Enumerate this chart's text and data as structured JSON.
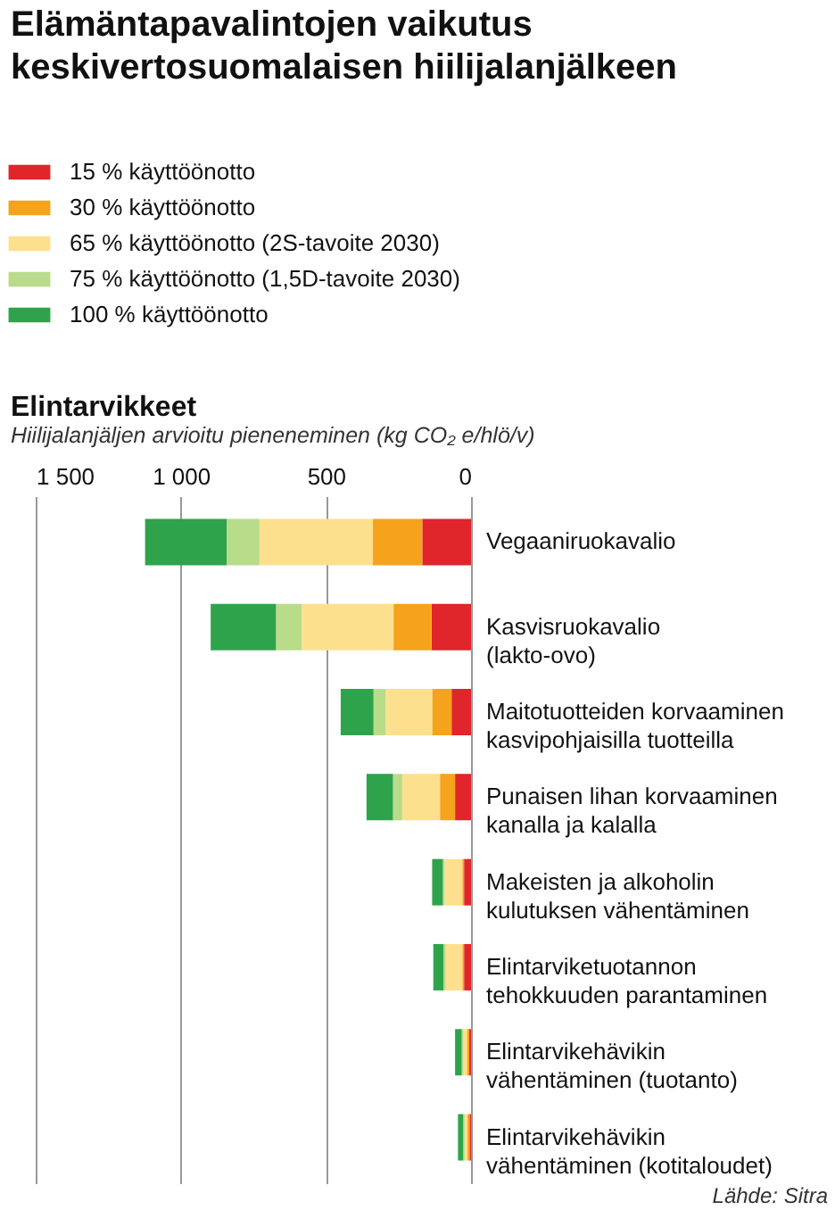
{
  "chart_data": {
    "type": "bar",
    "orientation": "horizontal",
    "stacked": true,
    "title": "Elämäntapavalintojen vaikutus keskivertosuomalaisen hiilijalanjälkeen",
    "subtitle": "Elintarvikkeet",
    "xlabel": "Hiilijalanjäljen arvioitu pieneneminen (kg CO₂ e/hlö/v)",
    "categories": [
      "Vegaaniruokavalio",
      "Kasvisruokavalio\n(lakto-ovo)",
      "Maitotuotteiden korvaaminen\nkasvipohjaisilla tuotteilla",
      "Punaisen lihan korvaaminen\nkanalla ja kalalla",
      "Makeisten ja alkoholin\nkulutuksen vähentäminen",
      "Elintarviketuotannon\ntehokkuuden parantaminen",
      "Elintarvikehävikin\nvähentäminen (tuotanto)",
      "Elintarvikehävikin\nvähentäminen (kotitaloudet)"
    ],
    "series": [
      {
        "name": "15 % käyttöönotto",
        "color": "#e0252b",
        "values": [
          168,
          136,
          67,
          55,
          24,
          24,
          6,
          5
        ]
      },
      {
        "name": "30 % käyttöönotto",
        "color": "#f5a31d",
        "values": [
          170,
          131,
          67,
          52,
          6,
          6,
          8,
          7
        ]
      },
      {
        "name": "65 % käyttöönotto (2S-tavoite 2030)",
        "color": "#fde08e",
        "values": [
          391,
          316,
          160,
          130,
          61,
          57,
          12,
          10
        ]
      },
      {
        "name": "75 % käyttöönotto (1,5D-tavoite 2030)",
        "color": "#b9dc8a",
        "values": [
          113,
          89,
          42,
          32,
          6,
          8,
          6,
          5
        ]
      },
      {
        "name": "100 % käyttöönotto",
        "color": "#2fa34b",
        "values": [
          281,
          225,
          113,
          91,
          37,
          35,
          23,
          18
        ]
      }
    ],
    "xlim": [
      1500,
      0
    ],
    "xticks": [
      {
        "value": 1500,
        "label": "1 500"
      },
      {
        "value": 1000,
        "label": "1 000"
      },
      500,
      0
    ],
    "grid": "x",
    "legend": "top left",
    "annotations": [
      "Lähde: Sitra"
    ]
  }
}
